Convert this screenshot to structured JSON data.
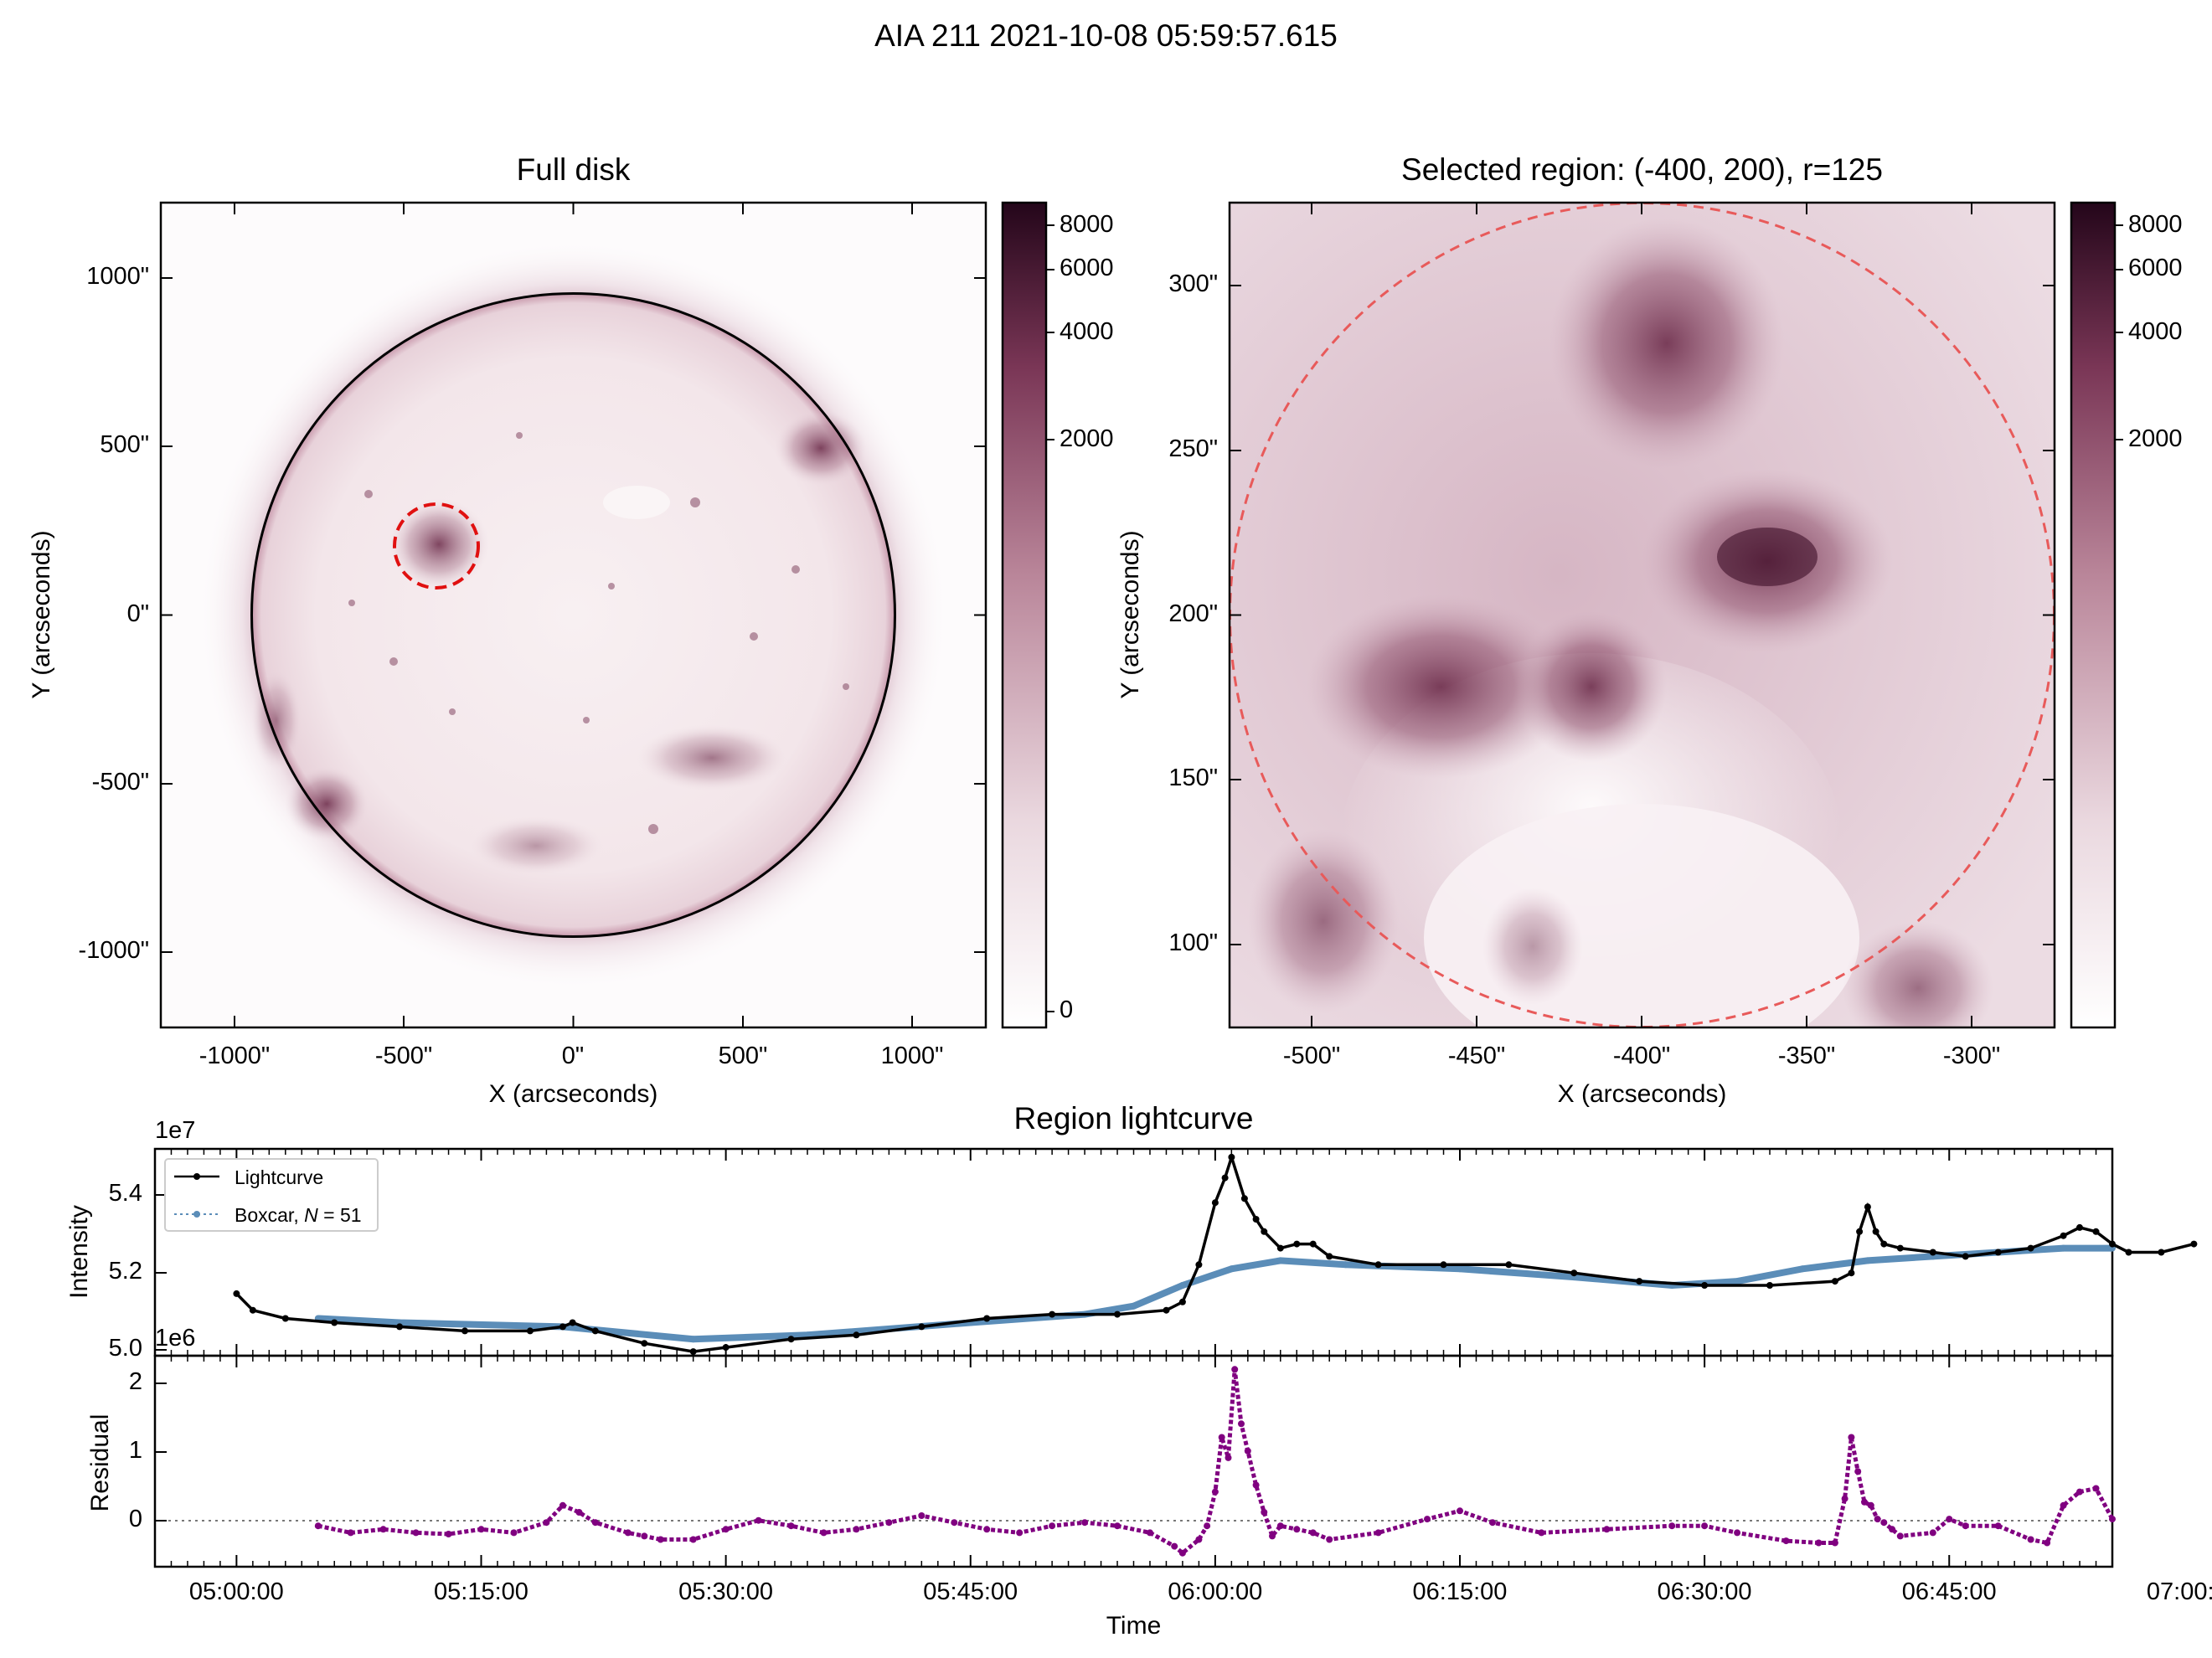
{
  "figure": {
    "suptitle": "AIA 211 2021-10-08 05:59:57.615",
    "colors": {
      "map_dark": "#2b0a1e",
      "map_mid": "#8a4a66",
      "map_light": "#f7eef1",
      "region_circle": "#e01010",
      "limb": "#000000",
      "lightcurve": "#000000",
      "boxcar": "#5b8db8",
      "residual": "#800080"
    }
  },
  "full_disk": {
    "title": "Full disk",
    "xlabel": "X (arcseconds)",
    "ylabel": "Y (arcseconds)",
    "xticks": [
      "-1000\"",
      "-500\"",
      "0\"",
      "500\"",
      "1000\""
    ],
    "yticks": [
      "1000\"",
      "500\"",
      "0\"",
      "-500\"",
      "-1000\""
    ],
    "range_arcsec": [
      -1230,
      1230
    ],
    "solar_radius_arcsec": 960,
    "region_center_arcsec": [
      -400,
      200
    ],
    "region_radius_arcsec": 125,
    "colorbar_ticks": [
      "8000",
      "6000",
      "4000",
      "2000",
      "0"
    ]
  },
  "selected_region": {
    "title": "Selected region: (-400, 200), r=125",
    "xlabel": "X (arcseconds)",
    "ylabel": "Y (arcseconds)",
    "xticks": [
      "-500\"",
      "-450\"",
      "-400\"",
      "-350\"",
      "-300\""
    ],
    "yticks": [
      "300\"",
      "250\"",
      "200\"",
      "150\"",
      "100\""
    ],
    "xlim": [
      -525,
      -275
    ],
    "ylim": [
      75,
      325
    ],
    "colorbar_ticks": [
      "8000",
      "6000",
      "4000",
      "2000"
    ]
  },
  "lightcurve": {
    "title": "Region lightcurve",
    "offset_label": "1e7",
    "ylabel": "Intensity",
    "yticks": [
      "5.4",
      "5.2",
      "5.0"
    ],
    "legend": {
      "lightcurve": "Lightcurve",
      "boxcar_prefix": "Boxcar, ",
      "boxcar_n": "N",
      "boxcar_suffix": " = 51"
    }
  },
  "residual": {
    "offset_label": "1e6",
    "ylabel": "Residual",
    "yticks": [
      "2",
      "1",
      "0"
    ],
    "xlabel": "Time",
    "xticks": [
      "05:00:00",
      "05:15:00",
      "05:30:00",
      "05:45:00",
      "06:00:00",
      "06:15:00",
      "06:30:00",
      "06:45:00",
      "07:00:00"
    ]
  },
  "chart_data": [
    {
      "type": "line",
      "title": "Region lightcurve",
      "x_unit": "minutes after 05:00:00",
      "ylabel": "Intensity",
      "y_scale": "1e7",
      "ylim": [
        5.0,
        5.5
      ],
      "xlim": [
        -5,
        115
      ],
      "series": [
        {
          "name": "Lightcurve",
          "x": [
            0,
            1,
            3,
            6,
            10,
            14,
            18,
            20,
            20.6,
            22,
            25,
            28,
            30,
            34,
            38,
            42,
            46,
            50,
            54,
            57,
            58,
            59,
            60,
            60.6,
            61,
            61.8,
            62.5,
            63,
            64,
            65,
            66,
            67,
            70,
            74,
            78,
            82,
            86,
            90,
            94,
            98,
            99,
            99.5,
            100,
            100.5,
            101,
            102,
            104,
            106,
            108,
            110,
            112,
            113,
            114,
            115,
            116,
            118,
            120
          ],
          "y": [
            5.15,
            5.11,
            5.09,
            5.08,
            5.07,
            5.06,
            5.06,
            5.07,
            5.08,
            5.06,
            5.03,
            5.01,
            5.02,
            5.04,
            5.05,
            5.07,
            5.09,
            5.1,
            5.1,
            5.11,
            5.13,
            5.22,
            5.37,
            5.43,
            5.48,
            5.38,
            5.33,
            5.3,
            5.26,
            5.27,
            5.27,
            5.24,
            5.22,
            5.22,
            5.22,
            5.2,
            5.18,
            5.17,
            5.17,
            5.18,
            5.2,
            5.3,
            5.36,
            5.3,
            5.27,
            5.26,
            5.25,
            5.24,
            5.25,
            5.26,
            5.29,
            5.31,
            5.3,
            5.27,
            5.25,
            5.25,
            5.27
          ]
        },
        {
          "name": "Boxcar, N = 51",
          "x": [
            5,
            10,
            20,
            28,
            35,
            45,
            52,
            55,
            58,
            61,
            64,
            68,
            75,
            82,
            88,
            92,
            96,
            100,
            104,
            108,
            112,
            115
          ],
          "y": [
            5.09,
            5.08,
            5.07,
            5.04,
            5.05,
            5.08,
            5.1,
            5.12,
            5.17,
            5.21,
            5.23,
            5.22,
            5.21,
            5.19,
            5.17,
            5.18,
            5.21,
            5.23,
            5.24,
            5.25,
            5.26,
            5.26
          ]
        }
      ]
    },
    {
      "type": "line",
      "x_unit": "minutes after 05:00:00",
      "xlabel": "Time",
      "ylabel": "Residual",
      "y_scale": "1e6",
      "ylim": [
        -0.6,
        2.5
      ],
      "xlim": [
        -5,
        115
      ],
      "series": [
        {
          "x": [
            5,
            7,
            9,
            11,
            13,
            15,
            17,
            19,
            20,
            21,
            22,
            24,
            25,
            26,
            28,
            30,
            32,
            34,
            36,
            38,
            40,
            42,
            44,
            46,
            48,
            50,
            52,
            54,
            56,
            57.5,
            58,
            59,
            59.5,
            60,
            60.4,
            60.8,
            61.2,
            61.6,
            62,
            62.5,
            63,
            63.5,
            64,
            65,
            66,
            67,
            70,
            73,
            75,
            77,
            80,
            84,
            88,
            90,
            92,
            95,
            97,
            98,
            98.6,
            99,
            99.4,
            99.8,
            100.2,
            100.6,
            101,
            101.5,
            102,
            104,
            105,
            106,
            108,
            110,
            111,
            112,
            113,
            114,
            115
          ],
          "y": [
            0.0,
            -0.1,
            -0.05,
            -0.1,
            -0.12,
            -0.05,
            -0.1,
            0.05,
            0.3,
            0.2,
            0.05,
            -0.1,
            -0.15,
            -0.2,
            -0.2,
            -0.05,
            0.08,
            0.0,
            -0.1,
            -0.05,
            0.05,
            0.15,
            0.05,
            -0.05,
            -0.1,
            0.0,
            0.05,
            0.0,
            -0.1,
            -0.3,
            -0.4,
            -0.2,
            0.0,
            0.5,
            1.3,
            1.0,
            2.3,
            1.5,
            1.1,
            0.6,
            0.2,
            -0.15,
            0.0,
            -0.05,
            -0.1,
            -0.2,
            -0.1,
            0.1,
            0.22,
            0.05,
            -0.1,
            -0.05,
            0.0,
            0.0,
            -0.1,
            -0.22,
            -0.25,
            -0.25,
            0.4,
            1.3,
            0.8,
            0.35,
            0.3,
            0.1,
            0.05,
            -0.05,
            -0.15,
            -0.1,
            0.1,
            0.0,
            0.0,
            -0.2,
            -0.25,
            0.3,
            0.5,
            0.55,
            0.1
          ]
        }
      ]
    }
  ]
}
